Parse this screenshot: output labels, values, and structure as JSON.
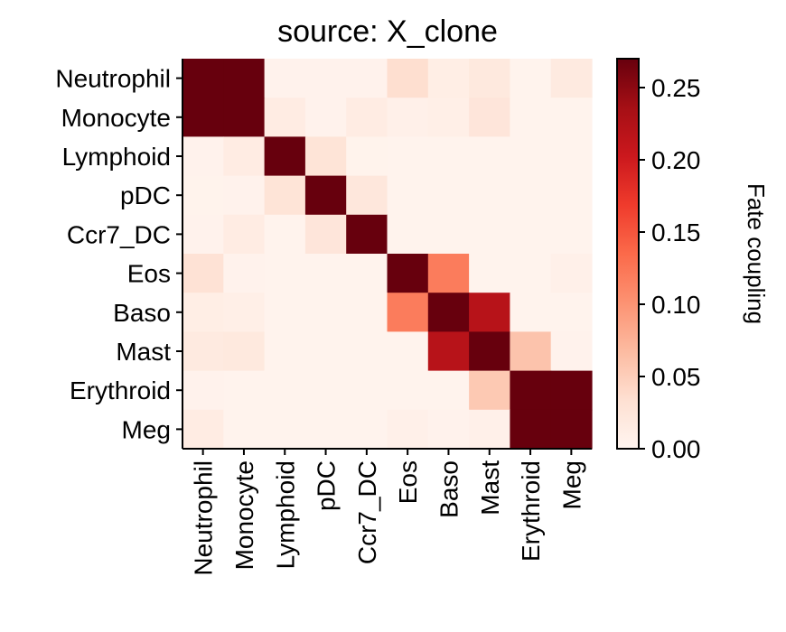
{
  "chart_data": {
    "type": "heatmap",
    "title": "source: X_clone",
    "rows": [
      "Neutrophil",
      "Monocyte",
      "Lymphoid",
      "pDC",
      "Ccr7_DC",
      "Eos",
      "Baso",
      "Mast",
      "Erythroid",
      "Meg"
    ],
    "cols": [
      "Neutrophil",
      "Monocyte",
      "Lymphoid",
      "pDC",
      "Ccr7_DC",
      "Eos",
      "Baso",
      "Mast",
      "Erythroid",
      "Meg"
    ],
    "values": [
      [
        0.27,
        0.27,
        0.005,
        0.005,
        0.005,
        0.035,
        0.012,
        0.02,
        0.003,
        0.018
      ],
      [
        0.27,
        0.27,
        0.015,
        0.005,
        0.015,
        0.008,
        0.01,
        0.025,
        0.003,
        0.003
      ],
      [
        0.005,
        0.015,
        0.27,
        0.028,
        0.004,
        0.003,
        0.003,
        0.003,
        0.003,
        0.003
      ],
      [
        0.004,
        0.005,
        0.028,
        0.27,
        0.022,
        0.003,
        0.003,
        0.003,
        0.003,
        0.003
      ],
      [
        0.005,
        0.015,
        0.003,
        0.025,
        0.27,
        0.003,
        0.003,
        0.003,
        0.003,
        0.003
      ],
      [
        0.03,
        0.005,
        0.003,
        0.003,
        0.003,
        0.27,
        0.12,
        0.003,
        0.003,
        0.008
      ],
      [
        0.012,
        0.01,
        0.003,
        0.003,
        0.003,
        0.12,
        0.27,
        0.22,
        0.003,
        0.003
      ],
      [
        0.018,
        0.02,
        0.003,
        0.003,
        0.003,
        0.003,
        0.22,
        0.27,
        0.06,
        0.005
      ],
      [
        0.005,
        0.003,
        0.003,
        0.003,
        0.003,
        0.003,
        0.003,
        0.055,
        0.27,
        0.27
      ],
      [
        0.015,
        0.003,
        0.003,
        0.003,
        0.003,
        0.008,
        0.005,
        0.008,
        0.27,
        0.27
      ]
    ],
    "colorbar": {
      "label": "Fate coupling",
      "min": 0,
      "max": 0.27,
      "ticks": [
        0.0,
        0.05,
        0.1,
        0.15,
        0.2,
        0.25
      ],
      "tick_labels": [
        "0.00",
        "0.05",
        "0.10",
        "0.15",
        "0.20",
        "0.25"
      ]
    },
    "colormap": "Reds",
    "colormap_stops": [
      "#fff5f0",
      "#fee0d2",
      "#fcbba1",
      "#fc9272",
      "#fb6a4a",
      "#ef3b2c",
      "#cb181d",
      "#a50f15",
      "#67000d"
    ],
    "grid": false
  }
}
